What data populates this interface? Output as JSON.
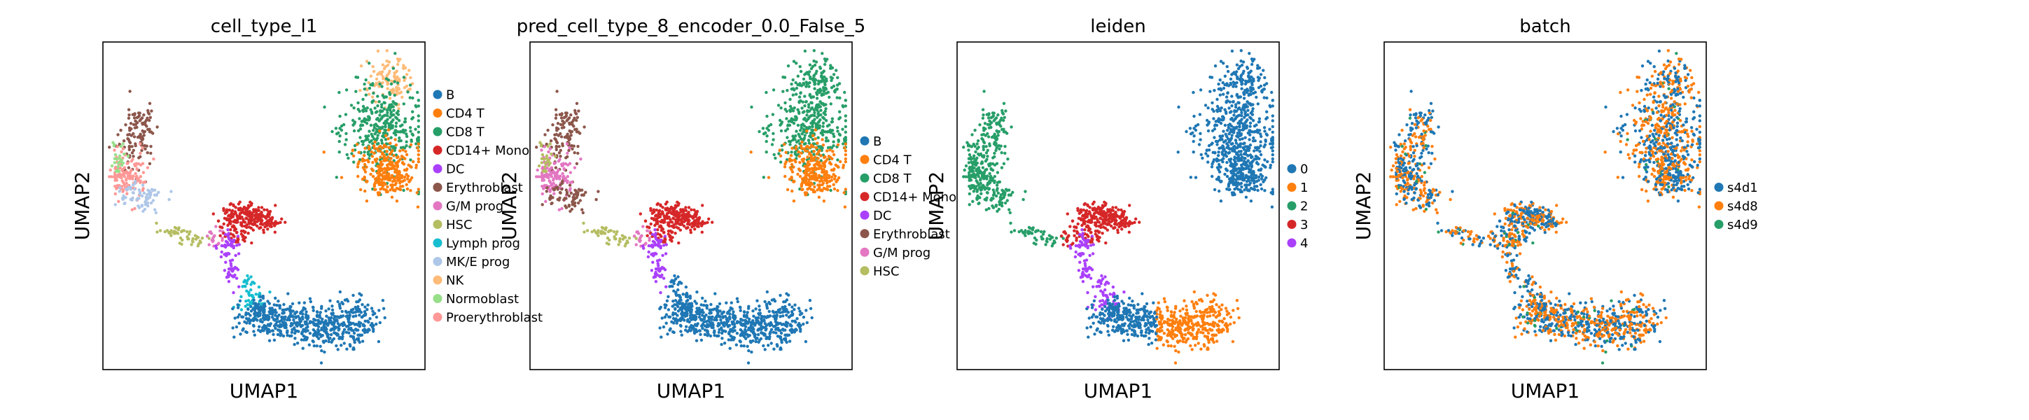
{
  "chart_data": [
    {
      "type": "scatter",
      "title": "cell_type_l1",
      "xlabel": "UMAP1",
      "ylabel": "UMAP2",
      "legend_location": "right",
      "legend": [
        {
          "label": "B",
          "color": "#1f77b4"
        },
        {
          "label": "CD4 T",
          "color": "#ff7f0e"
        },
        {
          "label": "CD8 T",
          "color": "#279e68"
        },
        {
          "label": "CD14+ Mono",
          "color": "#d62728"
        },
        {
          "label": "DC",
          "color": "#aa40fc"
        },
        {
          "label": "Erythroblast",
          "color": "#8c564b"
        },
        {
          "label": "G/M prog",
          "color": "#e377c2"
        },
        {
          "label": "HSC",
          "color": "#b5bd61"
        },
        {
          "label": "Lymph prog",
          "color": "#17becf"
        },
        {
          "label": "MK/E prog",
          "color": "#aec7e8"
        },
        {
          "label": "NK",
          "color": "#ffbb78"
        },
        {
          "label": "Normoblast",
          "color": "#98df8a"
        },
        {
          "label": "Proerythroblast",
          "color": "#ff9896"
        }
      ]
    },
    {
      "type": "scatter",
      "title": "pred_cell_type_8_encoder_0.0_False_5",
      "xlabel": "UMAP1",
      "ylabel": "UMAP2",
      "legend_location": "right",
      "legend": [
        {
          "label": "B",
          "color": "#1f77b4"
        },
        {
          "label": "CD4 T",
          "color": "#ff7f0e"
        },
        {
          "label": "CD8 T",
          "color": "#279e68"
        },
        {
          "label": "CD14+ Mono",
          "color": "#d62728"
        },
        {
          "label": "DC",
          "color": "#aa40fc"
        },
        {
          "label": "Erythroblast",
          "color": "#8c564b"
        },
        {
          "label": "G/M prog",
          "color": "#e377c2"
        },
        {
          "label": "HSC",
          "color": "#b5bd61"
        }
      ]
    },
    {
      "type": "scatter",
      "title": "leiden",
      "xlabel": "UMAP1",
      "ylabel": "UMAP2",
      "legend_location": "right",
      "legend": [
        {
          "label": "0",
          "color": "#1f77b4"
        },
        {
          "label": "1",
          "color": "#ff7f0e"
        },
        {
          "label": "2",
          "color": "#279e68"
        },
        {
          "label": "3",
          "color": "#d62728"
        },
        {
          "label": "4",
          "color": "#aa40fc"
        }
      ]
    },
    {
      "type": "scatter",
      "title": "batch",
      "xlabel": "UMAP1",
      "ylabel": "UMAP2",
      "legend_location": "right",
      "legend": [
        {
          "label": "s4d1",
          "color": "#1f77b4"
        },
        {
          "label": "s4d8",
          "color": "#ff7f0e"
        },
        {
          "label": "s4d9",
          "color": "#279e68"
        }
      ]
    }
  ]
}
